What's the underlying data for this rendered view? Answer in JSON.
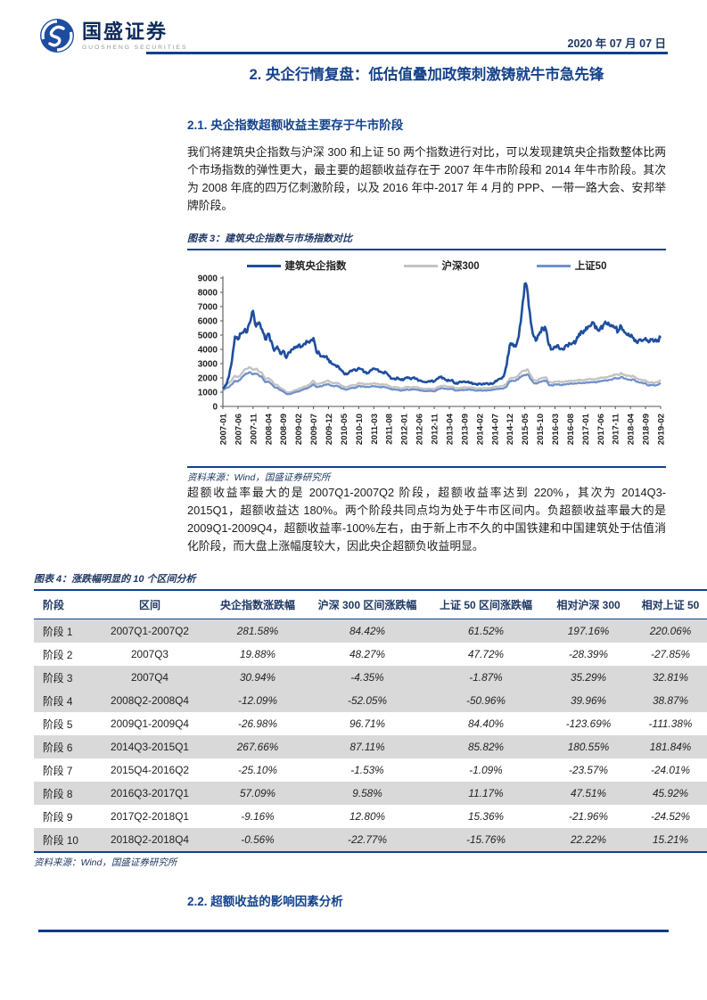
{
  "header": {
    "brand_cn": "国盛证券",
    "brand_en": "GUOSHENG SECURITIES",
    "date": "2020 年 07 月 07 日"
  },
  "sections": {
    "main_title": "2. 央企行情复盘：低估值叠加政策刺激铸就牛市急先锋",
    "sec21_title": "2.1. 央企指数超额收益主要存于牛市阶段",
    "para1": "我们将建筑央企指数与沪深 300 和上证 50 两个指数进行对比，可以发现建筑央企指数整体比两个市场指数的弹性更大，最主要的超额收益存在于 2007 年牛市阶段和 2014 年牛市阶段。其次为 2008 年底的四万亿刺激阶段，以及 2016 年中-2017 年 4 月的 PPP、一带一路大会、安邦举牌阶段。",
    "para2": "超额收益率最大的是 2007Q1-2007Q2 阶段，超额收益率达到 220%，其次为 2014Q3-2015Q1，超额收益达 180%。两个阶段共同点均为处于牛市区间内。负超额收益率最大的是 2009Q1-2009Q4，超额收益率-100%左右，由于新上市不久的中国铁建和中国建筑处于估值消化阶段，而大盘上涨幅度较大，因此央企超额负收益明显。",
    "sec22_title": "2.2. 超额收益的影响因素分析"
  },
  "figure3": {
    "caption": "图表 3：建筑央企指数与市场指数对比",
    "source": "资料来源：Wind，国盛证券研究所"
  },
  "chart_data": {
    "type": "line",
    "title": "建筑央企指数与市场指数对比",
    "xlabel": "",
    "ylabel": "",
    "ylim": [
      0,
      9000
    ],
    "y_ticks": [
      0,
      1000,
      2000,
      3000,
      4000,
      5000,
      6000,
      7000,
      8000,
      9000
    ],
    "grid": false,
    "legend_position": "top",
    "x_start": "2007-01",
    "x_end": "2019-02",
    "x_tick_labels": [
      "2007-01",
      "2007-06",
      "2007-11",
      "2008-04",
      "2008-09",
      "2009-02",
      "2009-07",
      "2009-12",
      "2010-05",
      "2010-10",
      "2011-03",
      "2011-08",
      "2012-01",
      "2012-06",
      "2012-11",
      "2013-04",
      "2013-09",
      "2014-02",
      "2014-07",
      "2014-12",
      "2015-05",
      "2015-10",
      "2016-03",
      "2016-08",
      "2017-01",
      "2017-06",
      "2017-11",
      "2018-04",
      "2018-09",
      "2019-02"
    ],
    "x_tick_every": 5,
    "series": [
      {
        "name": "建筑央企指数",
        "color": "#1F4E9E",
        "values": [
          1250,
          1500,
          2100,
          3200,
          4900,
          4700,
          5100,
          5300,
          5200,
          5900,
          6700,
          5600,
          5900,
          5400,
          4700,
          5100,
          4600,
          3900,
          4200,
          3700,
          3900,
          3400,
          3800,
          4000,
          4100,
          4300,
          4200,
          4400,
          4500,
          4600,
          4800,
          3800,
          3700,
          3500,
          3500,
          3300,
          3000,
          2900,
          2850,
          2600,
          2350,
          2250,
          2450,
          2550,
          2500,
          2700,
          2600,
          2400,
          2350,
          2550,
          2650,
          2600,
          2450,
          2350,
          2400,
          2150,
          1950,
          1900,
          2000,
          1850,
          1900,
          2050,
          1950,
          2000,
          1950,
          1800,
          1750,
          1700,
          1750,
          1800,
          1750,
          1950,
          2050,
          2000,
          1850,
          1800,
          1850,
          1600,
          1650,
          1700,
          1750,
          1700,
          1650,
          1600,
          1550,
          1600,
          1550,
          1600,
          1550,
          1600,
          1700,
          1850,
          1950,
          2100,
          2900,
          4300,
          4400,
          4200,
          4900,
          6600,
          8600,
          7900,
          5900,
          4900,
          4700,
          5200,
          5500,
          5400,
          4300,
          4000,
          4200,
          4300,
          4050,
          4000,
          4300,
          4400,
          4450,
          4600,
          5100,
          5200,
          5300,
          5600,
          5700,
          5800,
          5400,
          5500,
          5700,
          5800,
          5700,
          5600,
          5500,
          5300,
          5600,
          5200,
          5000,
          4900,
          4800,
          4500,
          4700,
          4600,
          4800,
          4500,
          4700,
          4600,
          4650,
          4800
        ]
      },
      {
        "name": "沪深300",
        "color": "#C3C3C3",
        "values": [
          1400,
          1550,
          1650,
          1850,
          2150,
          2050,
          2250,
          2550,
          2650,
          2750,
          2550,
          2650,
          2450,
          2350,
          1950,
          2000,
          1850,
          1550,
          1500,
          1300,
          1200,
          1000,
          980,
          1050,
          1150,
          1200,
          1300,
          1400,
          1450,
          1600,
          1800,
          1550,
          1600,
          1650,
          1750,
          1800,
          1650,
          1630,
          1650,
          1500,
          1400,
          1350,
          1450,
          1500,
          1480,
          1650,
          1600,
          1570,
          1550,
          1600,
          1620,
          1590,
          1530,
          1550,
          1530,
          1450,
          1350,
          1370,
          1330,
          1250,
          1300,
          1370,
          1330,
          1370,
          1360,
          1300,
          1250,
          1230,
          1250,
          1240,
          1200,
          1330,
          1430,
          1450,
          1400,
          1380,
          1400,
          1270,
          1280,
          1300,
          1330,
          1320,
          1340,
          1300,
          1260,
          1280,
          1270,
          1280,
          1290,
          1310,
          1380,
          1400,
          1410,
          1450,
          1600,
          1950,
          2000,
          2020,
          2200,
          2450,
          2500,
          2600,
          2150,
          1850,
          1800,
          1950,
          2000,
          2050,
          1700,
          1650,
          1730,
          1750,
          1700,
          1730,
          1770,
          1800,
          1790,
          1810,
          1870,
          1850,
          1860,
          1900,
          1920,
          1910,
          1930,
          2000,
          2030,
          2050,
          2100,
          2150,
          2250,
          2200,
          2350,
          2200,
          2150,
          2100,
          2130,
          1950,
          1900,
          1850,
          1830,
          1650,
          1700,
          1650,
          1700,
          1850
        ]
      },
      {
        "name": "上证50",
        "color": "#7191C9",
        "values": [
          1150,
          1280,
          1350,
          1550,
          1800,
          1750,
          1950,
          2200,
          2300,
          2400,
          2250,
          2300,
          2150,
          2050,
          1700,
          1750,
          1600,
          1350,
          1300,
          1150,
          1050,
          880,
          860,
          930,
          1000,
          1050,
          1130,
          1220,
          1270,
          1400,
          1570,
          1350,
          1400,
          1440,
          1530,
          1570,
          1440,
          1420,
          1440,
          1300,
          1220,
          1180,
          1270,
          1310,
          1290,
          1440,
          1400,
          1370,
          1360,
          1400,
          1420,
          1390,
          1340,
          1360,
          1340,
          1270,
          1180,
          1200,
          1160,
          1100,
          1140,
          1200,
          1160,
          1200,
          1190,
          1140,
          1100,
          1080,
          1100,
          1090,
          1050,
          1170,
          1250,
          1270,
          1230,
          1210,
          1230,
          1110,
          1120,
          1140,
          1160,
          1160,
          1170,
          1140,
          1100,
          1120,
          1110,
          1120,
          1130,
          1150,
          1210,
          1230,
          1240,
          1270,
          1400,
          1750,
          1800,
          1820,
          1950,
          2150,
          2200,
          2250,
          1900,
          1650,
          1600,
          1730,
          1780,
          1820,
          1500,
          1460,
          1530,
          1550,
          1500,
          1530,
          1570,
          1600,
          1590,
          1610,
          1660,
          1640,
          1650,
          1690,
          1700,
          1690,
          1710,
          1780,
          1800,
          1820,
          1860,
          1900,
          2000,
          1950,
          2080,
          1950,
          1900,
          1860,
          1890,
          1730,
          1680,
          1640,
          1620,
          1460,
          1510,
          1460,
          1510,
          1640
        ]
      }
    ]
  },
  "figure4": {
    "caption": "图表 4：涨跌幅明显的 10 个区间分析",
    "source": "资料来源：Wind，国盛证券研究所",
    "columns": [
      "阶段",
      "区间",
      "央企指数涨跌幅",
      "沪深 300 区间涨跌幅",
      "上证 50 区间涨跌幅",
      "相对沪深 300",
      "相对上证 50"
    ],
    "shaded_rows": [
      1,
      3,
      4,
      6,
      8,
      10
    ],
    "rows": [
      [
        "阶段 1",
        "2007Q1-2007Q2",
        "281.58%",
        "84.42%",
        "61.52%",
        "197.16%",
        "220.06%"
      ],
      [
        "阶段 2",
        "2007Q3",
        "19.88%",
        "48.27%",
        "47.72%",
        "-28.39%",
        "-27.85%"
      ],
      [
        "阶段 3",
        "2007Q4",
        "30.94%",
        "-4.35%",
        "-1.87%",
        "35.29%",
        "32.81%"
      ],
      [
        "阶段 4",
        "2008Q2-2008Q4",
        "-12.09%",
        "-52.05%",
        "-50.96%",
        "39.96%",
        "38.87%"
      ],
      [
        "阶段 5",
        "2009Q1-2009Q4",
        "-26.98%",
        "96.71%",
        "84.40%",
        "-123.69%",
        "-111.38%"
      ],
      [
        "阶段 6",
        "2014Q3-2015Q1",
        "267.66%",
        "87.11%",
        "85.82%",
        "180.55%",
        "181.84%"
      ],
      [
        "阶段 7",
        "2015Q4-2016Q2",
        "-25.10%",
        "-1.53%",
        "-1.09%",
        "-23.57%",
        "-24.01%"
      ],
      [
        "阶段 8",
        "2016Q3-2017Q1",
        "57.09%",
        "9.58%",
        "11.17%",
        "47.51%",
        "45.92%"
      ],
      [
        "阶段 9",
        "2017Q2-2018Q1",
        "-9.16%",
        "12.80%",
        "15.36%",
        "-21.96%",
        "-24.52%"
      ],
      [
        "阶段 10",
        "2018Q2-2018Q4",
        "-0.56%",
        "-22.77%",
        "-15.76%",
        "22.22%",
        "15.21%"
      ]
    ]
  },
  "colors": {
    "accent_navy": "#12408D",
    "heading_blue": "#15428B",
    "table_shaded": "#D9D9D9",
    "series_central": "#1F4E9E",
    "series_hs300": "#C3C3C3",
    "series_sz50": "#7191C9"
  }
}
